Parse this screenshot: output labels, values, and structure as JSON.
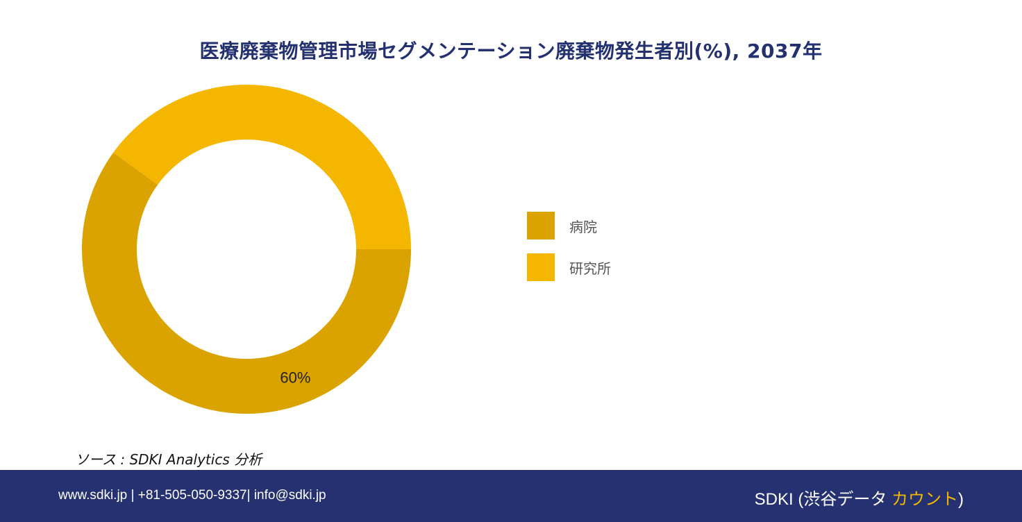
{
  "chart_data": {
    "type": "pie",
    "title": "医療廃棄物管理市場セグメンテーション廃棄物発生者別(%), 2037年",
    "categories": [
      "病院",
      "研究所"
    ],
    "values": [
      60,
      40
    ],
    "data_labels": [
      "60%",
      ""
    ],
    "colors": [
      "#daa300",
      "#f5b600"
    ],
    "legend_position": "right"
  },
  "source": "ソース : SDKI Analytics 分析",
  "footer": {
    "contact": "www.sdki.jp | +81-505-050-9337| info@sdki.jp",
    "brand_main": "SDKI (渋谷データ ",
    "brand_accent": "カウント",
    "brand_close": ")"
  }
}
